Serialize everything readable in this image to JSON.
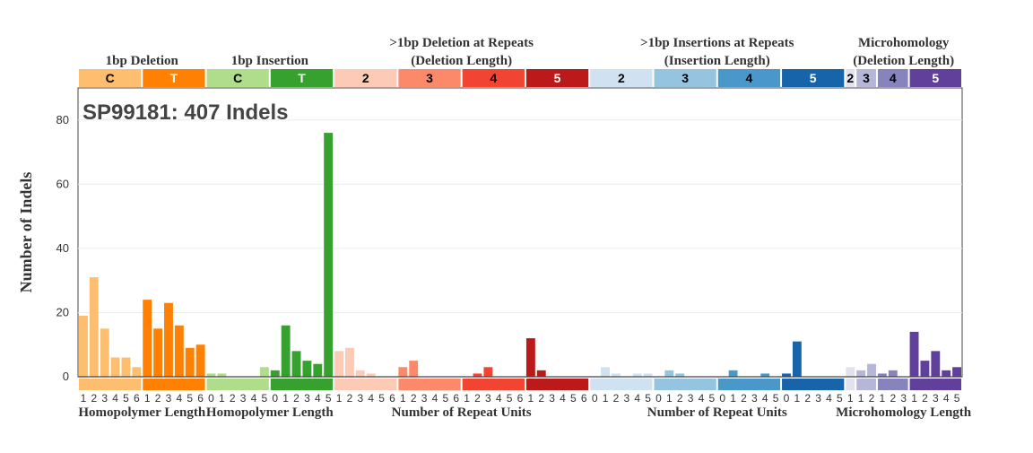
{
  "chart_data": {
    "type": "bar",
    "title": "SP99181: 407 Indels",
    "ylabel": "Number of Indels",
    "ylim": [
      0,
      90
    ],
    "yticks": [
      0,
      20,
      40,
      60,
      80
    ],
    "grid": true,
    "top_group_labels": [
      {
        "line1": "",
        "line2": "1bp Deletion",
        "span": [
          0,
          11
        ]
      },
      {
        "line1": "",
        "line2": "1bp Insertion",
        "span": [
          12,
          23
        ]
      },
      {
        "line1": ">1bp Deletion at Repeats",
        "line2": "(Deletion Length)",
        "span": [
          24,
          47
        ]
      },
      {
        "line1": ">1bp Insertions at Repeats",
        "line2": "(Insertion Length)",
        "span": [
          48,
          71
        ]
      },
      {
        "line1": "Microhomology",
        "line2": "(Deletion Length)",
        "span": [
          72,
          82
        ]
      }
    ],
    "bottom_group_labels": [
      {
        "text": "Homopolymer Length",
        "span": [
          0,
          11
        ]
      },
      {
        "text": "Homopolymer Length",
        "span": [
          12,
          23
        ]
      },
      {
        "text": "Number of Repeat Units",
        "span": [
          24,
          47
        ]
      },
      {
        "text": "Number of Repeat Units",
        "span": [
          48,
          71
        ]
      },
      {
        "text": "Microhomology Length",
        "span": [
          72,
          82
        ]
      }
    ],
    "segments": [
      {
        "label": "C",
        "color": "#fdbe6f",
        "text_color": "#000000",
        "ticks": [
          "1",
          "2",
          "3",
          "4",
          "5",
          "6"
        ],
        "values": [
          19,
          31,
          15,
          6,
          6,
          3
        ]
      },
      {
        "label": "T",
        "color": "#ff8002",
        "text_color": "#ffffff",
        "ticks": [
          "1",
          "2",
          "3",
          "4",
          "5",
          "6"
        ],
        "values": [
          24,
          15,
          23,
          16,
          9,
          10
        ]
      },
      {
        "label": "C",
        "color": "#b0dd8b",
        "text_color": "#000000",
        "ticks": [
          "0",
          "1",
          "2",
          "3",
          "4",
          "5"
        ],
        "values": [
          1,
          1,
          0,
          0,
          0,
          3
        ]
      },
      {
        "label": "T",
        "color": "#36a12e",
        "text_color": "#ffffff",
        "ticks": [
          "0",
          "1",
          "2",
          "3",
          "4",
          "5"
        ],
        "values": [
          2,
          16,
          8,
          5,
          4,
          76
        ]
      },
      {
        "label": "2",
        "color": "#fdcab5",
        "text_color": "#000000",
        "ticks": [
          "1",
          "2",
          "3",
          "4",
          "5",
          "6"
        ],
        "values": [
          8,
          9,
          2,
          1,
          0,
          0
        ]
      },
      {
        "label": "3",
        "color": "#fc8a6a",
        "text_color": "#000000",
        "ticks": [
          "1",
          "2",
          "3",
          "4",
          "5",
          "6"
        ],
        "values": [
          3,
          5,
          0,
          0,
          0,
          0
        ]
      },
      {
        "label": "4",
        "color": "#f14432",
        "text_color": "#000000",
        "ticks": [
          "1",
          "2",
          "3",
          "4",
          "5",
          "6"
        ],
        "values": [
          0,
          1,
          3,
          0,
          0,
          0
        ]
      },
      {
        "label": "5",
        "color": "#bc191a",
        "text_color": "#ffffff",
        "ticks": [
          "1",
          "2",
          "3",
          "4",
          "5",
          "6"
        ],
        "values": [
          12,
          2,
          0,
          0,
          0,
          0
        ]
      },
      {
        "label": "2",
        "color": "#d0e1f2",
        "text_color": "#000000",
        "ticks": [
          "0",
          "1",
          "2",
          "3",
          "4",
          "5"
        ],
        "values": [
          0,
          3,
          1,
          0,
          1,
          1
        ]
      },
      {
        "label": "3",
        "color": "#94c4df",
        "text_color": "#000000",
        "ticks": [
          "0",
          "1",
          "2",
          "3",
          "4",
          "5"
        ],
        "values": [
          0,
          2,
          1,
          0,
          0,
          0
        ]
      },
      {
        "label": "4",
        "color": "#4a98c9",
        "text_color": "#000000",
        "ticks": [
          "0",
          "1",
          "2",
          "3",
          "4",
          "5"
        ],
        "values": [
          0,
          2,
          0,
          0,
          1,
          0
        ]
      },
      {
        "label": "5",
        "color": "#1764ab",
        "text_color": "#ffffff",
        "ticks": [
          "0",
          "1",
          "2",
          "3",
          "4",
          "5"
        ],
        "values": [
          1,
          11,
          0,
          0,
          0,
          0
        ]
      },
      {
        "label": "2",
        "color": "#e2e2ef",
        "text_color": "#000000",
        "ticks": [
          "1"
        ],
        "values": [
          3
        ]
      },
      {
        "label": "3",
        "color": "#b6b6d8",
        "text_color": "#000000",
        "ticks": [
          "1",
          "2"
        ],
        "values": [
          2,
          4
        ]
      },
      {
        "label": "4",
        "color": "#8683bd",
        "text_color": "#000000",
        "ticks": [
          "1",
          "2",
          "3"
        ],
        "values": [
          1,
          2,
          0
        ]
      },
      {
        "label": "5",
        "color": "#61409b",
        "text_color": "#ffffff",
        "ticks": [
          "1",
          "2",
          "3",
          "4",
          "5"
        ],
        "values": [
          14,
          5,
          8,
          2,
          3
        ]
      }
    ]
  }
}
